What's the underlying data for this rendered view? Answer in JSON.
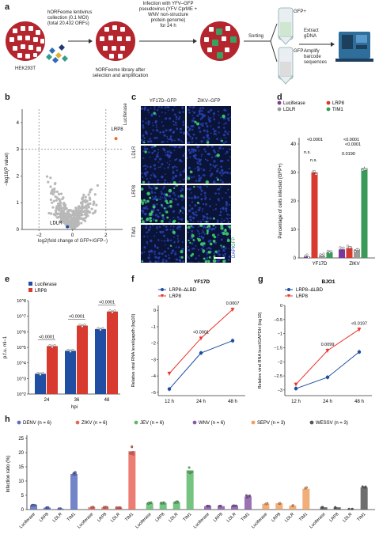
{
  "panel_letters": {
    "a": "a",
    "b": "b",
    "c": "c",
    "d": "d",
    "e": "e",
    "f": "f",
    "g": "g",
    "h": "h"
  },
  "panel_a": {
    "cell_label": "HEK293T",
    "library_text": [
      "hORFeome lentivirus",
      "collection (0.1 MOI)",
      "(total 20,432 ORFs)"
    ],
    "after_selection": [
      "hORFeome library after",
      "selection and amplification"
    ],
    "infection_text": [
      "Infection with YFV–GFP",
      "pseudovirus (YFV CprME +",
      "WNV non-structure",
      "protein genome)",
      "for 24 h"
    ],
    "sorting": "Sorting",
    "gfp_pos": "GFP+",
    "gfp_neg": "GFP−",
    "extract": [
      "Extract",
      "gDNA"
    ],
    "amplify": [
      "Amplify",
      "barcode",
      "sequences"
    ]
  },
  "panel_b": {
    "ylabel": "−log10(P value)",
    "xlabel": "log2(fold change of GFP+/GFP−)",
    "x_ticks": [
      "−2",
      "0",
      "2"
    ],
    "y_ticks": [
      "0",
      "1",
      "2",
      "3",
      "4"
    ],
    "labels": {
      "lrp8": "LRP8",
      "ldlr": "LDLR"
    },
    "colors": {
      "highlight": "#e8702a",
      "cloud": "#b8b8b8"
    }
  },
  "panel_c": {
    "col_headers": [
      "YF17D–GFP",
      "ZIKV–GFP"
    ],
    "row_labels": [
      "Luciferase",
      "LDLR",
      "LRP8",
      "TIM1"
    ],
    "stain_legend": {
      "dapi": "DAPI",
      "gfp": "GFP"
    }
  },
  "panel_d": {
    "legend": [
      "Luciferase",
      "LRP8",
      "LDLR",
      "TIM1"
    ],
    "ylabel": "Percentage of cells infected (GFP+)",
    "categories": [
      "YF17D",
      "ZIKV"
    ],
    "y_ticks": [
      "0",
      "10",
      "20",
      "30",
      "40"
    ],
    "annotations": [
      "<0.0001",
      "n.s.",
      "n.s.",
      "<0.0001",
      "0.0190",
      "<0.0001"
    ],
    "colors": [
      "#7b3a9a",
      "#d93a2f",
      "#9a9a9a",
      "#3a9a5a"
    ]
  },
  "panel_e": {
    "legend": [
      "Luciferase",
      "LRP8"
    ],
    "ylabel": "p.f.u. ml−1",
    "xlabel": "hpi",
    "categories": [
      "24",
      "36",
      "48"
    ],
    "y_ticks": [
      "10^2",
      "10^3",
      "10^4",
      "10^5",
      "10^6",
      "10^7",
      "10^8"
    ],
    "annotations": [
      "<0.0001",
      "<0.0001",
      "<0.0001"
    ],
    "colors": [
      "#1f4ea3",
      "#d93a2f"
    ]
  },
  "panel_f": {
    "title": "YF17D",
    "legend": [
      "LRP8–ΔLBD",
      "LRP8"
    ],
    "ylabel": "Relative viral RNA level/gapdh (log10)",
    "categories": [
      "12 h",
      "24 h",
      "48 h"
    ],
    "y_ticks": [
      "0",
      "−1",
      "−2",
      "−3",
      "−4",
      "−5"
    ],
    "annotations": [
      "<0.0001",
      "0.0007"
    ],
    "colors": [
      "#1f4ea3",
      "#e8342a"
    ]
  },
  "panel_g": {
    "title": "BJO1",
    "legend": [
      "LRP8–ΔLBD",
      "LRP8"
    ],
    "ylabel": "Relative viral RNA level/GAPDH (log10)",
    "categories": [
      "12 h",
      "24 h",
      "48 h"
    ],
    "y_ticks": [
      "0",
      "−0.5",
      "−1",
      "−1.5",
      "−2",
      "−2.5",
      "−3"
    ],
    "annotations": [
      "0.0099",
      "<0.0197"
    ],
    "colors": [
      "#1f4ea3",
      "#e8342a"
    ]
  },
  "panel_h": {
    "legend": [
      "DENV (n = 6)",
      "ZIKV (n = 6)",
      "JEV (n = 6)",
      "WNV (n = 6)",
      "SEPV (n = 3)",
      "WESSV (n = 3)"
    ],
    "ylabel": "Infection ratio (%)",
    "y_ticks": [
      "0",
      "5",
      "10",
      "15",
      "20",
      "25"
    ],
    "group_labels": [
      "Luciferase",
      "LRP8",
      "LDLR",
      "TIM1"
    ],
    "colors": [
      "#5b6fbf",
      "#e8665a",
      "#5fb86a",
      "#8a5aa8",
      "#f0a060",
      "#555555"
    ]
  },
  "chart_data": [
    {
      "type": "scatter",
      "panel": "b",
      "xlabel": "log2(fold change of GFP+/GFP−)",
      "ylabel": "−log10(P value)",
      "xlim": [
        -3,
        3
      ],
      "ylim": [
        0,
        4.5
      ],
      "highlights": [
        {
          "label": "LRP8",
          "x": 2.6,
          "y": 3.4
        },
        {
          "label": "LDLR",
          "x": -0.3,
          "y": 0.1
        }
      ]
    },
    {
      "type": "bar",
      "panel": "d",
      "categories": [
        "YF17D",
        "ZIKV"
      ],
      "series": [
        {
          "name": "Luciferase",
          "values": [
            0.5,
            3.0
          ]
        },
        {
          "name": "LRP8",
          "values": [
            30.0,
            3.5
          ]
        },
        {
          "name": "LDLR",
          "values": [
            0.8,
            3.0
          ]
        },
        {
          "name": "TIM1",
          "values": [
            2.0,
            31.5
          ]
        }
      ],
      "ylim": [
        0,
        40
      ]
    },
    {
      "type": "bar",
      "panel": "e",
      "categories": [
        "24",
        "36",
        "48"
      ],
      "series": [
        {
          "name": "Luciferase",
          "values": [
            2000,
            60000,
            1500000
          ]
        },
        {
          "name": "LRP8",
          "values": [
            120000,
            2500000,
            20000000
          ]
        }
      ],
      "scale": "log",
      "ylim": [
        100,
        100000000
      ]
    },
    {
      "type": "line",
      "panel": "f",
      "categories": [
        "12 h",
        "24 h",
        "48 h"
      ],
      "series": [
        {
          "name": "LRP8–ΔLBD",
          "values": [
            -4.8,
            -2.6,
            -1.85
          ]
        },
        {
          "name": "LRP8",
          "values": [
            -3.85,
            -1.7,
            0.05
          ]
        }
      ],
      "ylim": [
        -5.2,
        0.3
      ]
    },
    {
      "type": "line",
      "panel": "g",
      "categories": [
        "12 h",
        "24 h",
        "48 h"
      ],
      "series": [
        {
          "name": "LRP8–ΔLBD",
          "values": [
            -2.95,
            -2.55,
            -1.65
          ]
        },
        {
          "name": "LRP8",
          "values": [
            -2.8,
            -1.6,
            -0.85
          ]
        }
      ],
      "ylim": [
        -3.2,
        0
      ]
    },
    {
      "type": "bar",
      "panel": "h",
      "groups": [
        "DENV (n = 6)",
        "ZIKV (n = 6)",
        "JEV (n = 6)",
        "WNV (n = 6)",
        "SEPV (n = 3)",
        "WESSV (n = 3)"
      ],
      "categories": [
        "Luciferase",
        "LRP8",
        "LDLR",
        "TIM1"
      ],
      "series": [
        {
          "name": "DENV (n = 6)",
          "values": [
            1.5,
            0.7,
            0.3,
            12.5
          ]
        },
        {
          "name": "ZIKV (n = 6)",
          "values": [
            0.8,
            0.8,
            0.7,
            20.5
          ]
        },
        {
          "name": "JEV (n = 6)",
          "values": [
            2.3,
            2.3,
            2.6,
            13.8
          ]
        },
        {
          "name": "WNV (n = 6)",
          "values": [
            1.2,
            1.2,
            1.3,
            4.6
          ]
        },
        {
          "name": "SEPV (n = 3)",
          "values": [
            2.0,
            2.2,
            1.4,
            7.3
          ]
        },
        {
          "name": "WESSV (n = 3)",
          "values": [
            0.8,
            0.8,
            0.2,
            7.8
          ]
        }
      ],
      "ylim": [
        0,
        25
      ]
    }
  ]
}
